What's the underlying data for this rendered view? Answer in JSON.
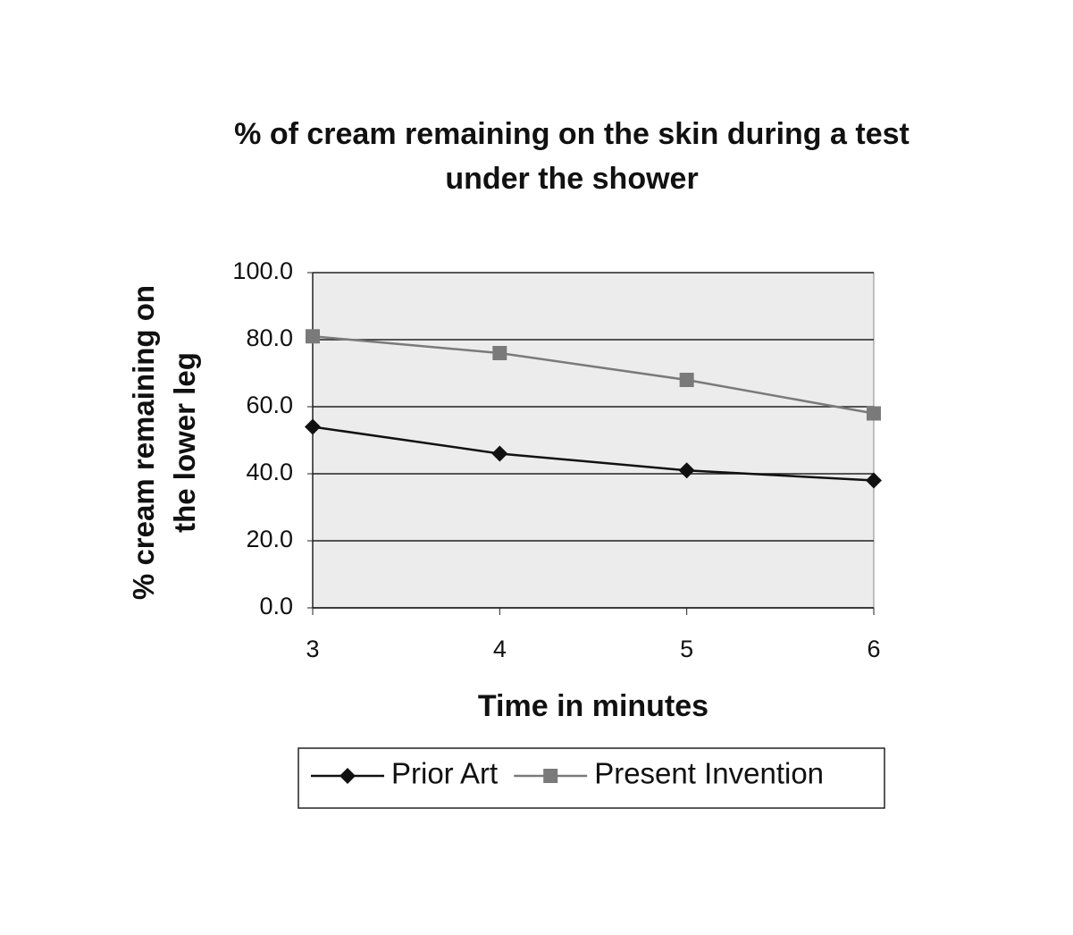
{
  "chart_data": {
    "type": "line",
    "title": "% of cream remaining on the skin during a test under the shower",
    "x_label": "Time in minutes",
    "y_label": "% cream remaining on the lower leg",
    "x": [
      3,
      4,
      5,
      6
    ],
    "xlim": [
      3,
      6
    ],
    "xticks": [
      3,
      4,
      5,
      6
    ],
    "ylim": [
      0,
      100
    ],
    "yticks": [
      {
        "value": 0,
        "label": "0.0"
      },
      {
        "value": 20,
        "label": "20.0"
      },
      {
        "value": 40,
        "label": "40.0"
      },
      {
        "value": 60,
        "label": "60.0"
      },
      {
        "value": 80,
        "label": "80.0"
      },
      {
        "value": 100,
        "label": "100.0"
      }
    ],
    "grid": true,
    "legend": "bottom",
    "series": [
      {
        "name": "Prior Art",
        "color": "#111111",
        "marker": "diamond",
        "values": [
          54,
          46,
          41,
          38
        ]
      },
      {
        "name": "Present Invention",
        "color": "#7a7a7a",
        "marker": "square",
        "values": [
          81,
          76,
          68,
          58
        ]
      }
    ]
  }
}
